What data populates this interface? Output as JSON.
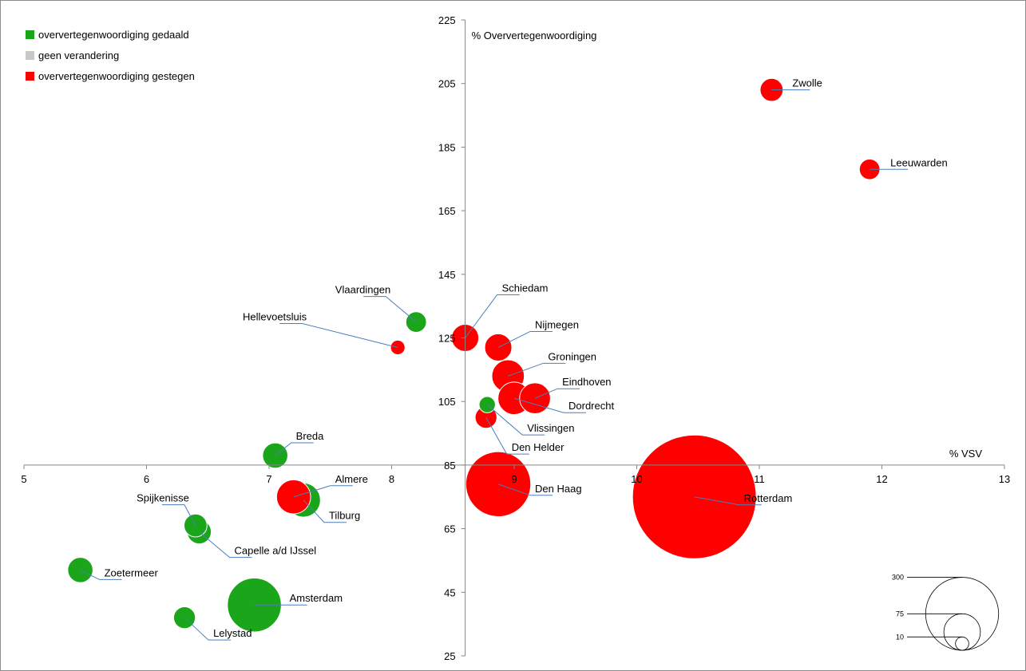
{
  "chart_data": {
    "type": "bubble",
    "xlabel": "% VSV",
    "ylabel": "% Oververtegenwoordiging",
    "xlim": [
      5,
      13
    ],
    "ylim": [
      25,
      225
    ],
    "x_ticks": [
      5,
      6,
      7,
      8,
      9,
      10,
      11,
      12,
      13
    ],
    "y_ticks": [
      25,
      45,
      65,
      85,
      105,
      125,
      145,
      165,
      185,
      205,
      225
    ],
    "axis_crossing": {
      "x": 8.6,
      "y": 85
    },
    "grid": false,
    "legend": {
      "placement": "top-left",
      "entries": [
        {
          "key": "gedaald",
          "label": "oververtegenwoordiging gedaald",
          "color": "#1aa51a"
        },
        {
          "key": "geen",
          "label": "geen verandering",
          "color": "#c8c8c8"
        },
        {
          "key": "gestegen",
          "label": "oververtegenwoordiging gestegen",
          "color": "#ff0000"
        }
      ]
    },
    "size_legend": {
      "placement": "bottom-right",
      "values": [
        300,
        75,
        10
      ]
    },
    "points": [
      {
        "name": "Zwolle",
        "x": 11.1,
        "y": 203,
        "size": 10,
        "group": "gestegen"
      },
      {
        "name": "Leeuwarden",
        "x": 11.9,
        "y": 178,
        "size": 8,
        "group": "gestegen"
      },
      {
        "name": "Vlaardingen",
        "x": 8.2,
        "y": 130,
        "size": 8,
        "group": "gedaald"
      },
      {
        "name": "Hellevoetsluis",
        "x": 8.05,
        "y": 122,
        "size": 4,
        "group": "gestegen"
      },
      {
        "name": "Schiedam",
        "x": 8.6,
        "y": 125,
        "size": 14,
        "group": "gestegen"
      },
      {
        "name": "Nijmegen",
        "x": 8.87,
        "y": 122,
        "size": 14,
        "group": "gestegen"
      },
      {
        "name": "Groningen",
        "x": 8.95,
        "y": 113,
        "size": 20,
        "group": "gestegen"
      },
      {
        "name": "Eindhoven",
        "x": 9.17,
        "y": 106,
        "size": 18,
        "group": "gestegen"
      },
      {
        "name": "Dordrecht",
        "x": 9.0,
        "y": 106,
        "size": 20,
        "group": "gestegen"
      },
      {
        "name": "Vlissingen",
        "x": 8.78,
        "y": 104,
        "size": 5,
        "group": "gedaald"
      },
      {
        "name": "Den Helder",
        "x": 8.77,
        "y": 100,
        "size": 9,
        "group": "gestegen"
      },
      {
        "name": "Breda",
        "x": 7.05,
        "y": 88,
        "size": 12,
        "group": "gedaald"
      },
      {
        "name": "Den Haag",
        "x": 8.87,
        "y": 79,
        "size": 80,
        "group": "gestegen"
      },
      {
        "name": "Rotterdam",
        "x": 10.47,
        "y": 75,
        "size": 290,
        "group": "gestegen"
      },
      {
        "name": "Tilburg",
        "x": 7.28,
        "y": 74,
        "size": 22,
        "group": "gedaald"
      },
      {
        "name": "Almere",
        "x": 7.2,
        "y": 75,
        "size": 22,
        "group": "gestegen"
      },
      {
        "name": "Spijkenisse",
        "x": 6.4,
        "y": 66,
        "size": 10,
        "group": "gedaald"
      },
      {
        "name": "Capelle a/d IJssel",
        "x": 6.43,
        "y": 64,
        "size": 11,
        "group": "gedaald"
      },
      {
        "name": "Zoetermeer",
        "x": 5.46,
        "y": 52,
        "size": 12,
        "group": "gedaald"
      },
      {
        "name": "Amsterdam",
        "x": 6.88,
        "y": 41,
        "size": 55,
        "group": "gedaald"
      },
      {
        "name": "Lelystad",
        "x": 6.31,
        "y": 37,
        "size": 9,
        "group": "gedaald"
      }
    ]
  }
}
